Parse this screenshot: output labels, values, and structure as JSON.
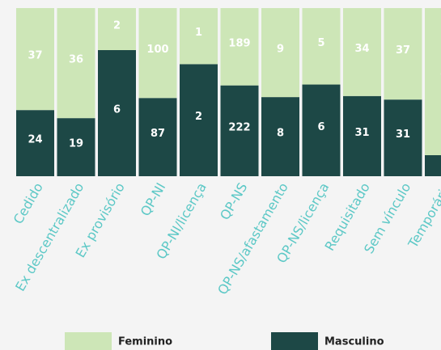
{
  "chart_data": {
    "type": "bar",
    "stacking": "percent",
    "categories": [
      "Cedido",
      "Ex descentralizado",
      "Ex provisório",
      "QP-NI",
      "QP-NI/licença",
      "QP-NS",
      "QP-NS/afastamento",
      "QP-NS/licença",
      "Requisitado",
      "Sem vínculo",
      "Temporário"
    ],
    "series": [
      {
        "name": "Masculino",
        "color": "#1d4846",
        "values": [
          24,
          19,
          6,
          87,
          2,
          222,
          8,
          6,
          31,
          31,
          1
        ]
      },
      {
        "name": "Feminino",
        "color": "#cde6b7",
        "values": [
          37,
          36,
          2,
          100,
          1,
          189,
          9,
          5,
          34,
          37,
          7
        ]
      }
    ]
  }
}
